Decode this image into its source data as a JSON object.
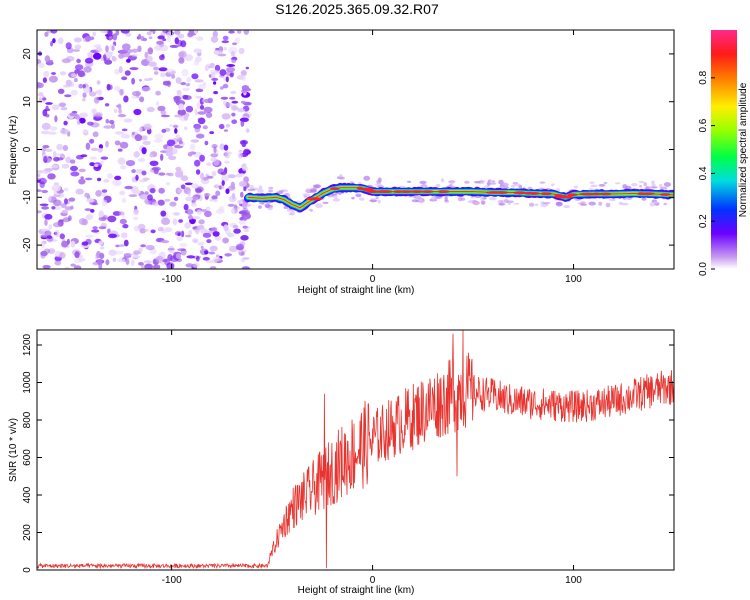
{
  "figure_title": "S126.2025.365.09.32.R07",
  "chart_data": [
    {
      "type": "heatmap",
      "xlabel": "Height of straight line (km)",
      "ylabel": "Frequency (Hz)",
      "xlim": [
        -167,
        150
      ],
      "ylim": [
        -25,
        25
      ],
      "x_ticks": [
        -100,
        0,
        100
      ],
      "y_ticks": [
        -20,
        -10,
        0,
        10,
        20
      ],
      "colorbar": {
        "label": "Normalized spectral amplitude",
        "range": [
          0,
          1
        ],
        "ticks": [
          0.0,
          0.2,
          0.4,
          0.6,
          0.8
        ]
      },
      "noise_region_x": [
        -167,
        -62
      ],
      "signal_ridge": {
        "x": [
          -62,
          -55,
          -48,
          -44,
          -40,
          -36,
          -32,
          -28,
          -24,
          -20,
          -16,
          -12,
          -8,
          -4,
          0,
          10,
          20,
          30,
          40,
          50,
          60,
          70,
          80,
          90,
          96,
          100,
          110,
          120,
          130,
          140,
          150
        ],
        "freq": [
          -10,
          -10.2,
          -10,
          -10.5,
          -11.5,
          -12.2,
          -11,
          -10,
          -9,
          -8.3,
          -8,
          -8,
          -8,
          -8.2,
          -8.8,
          -8.8,
          -8.8,
          -8.8,
          -8.8,
          -8.8,
          -9,
          -9,
          -9.2,
          -9.3,
          -10,
          -9.4,
          -9.3,
          -9.3,
          -9.2,
          -9.3,
          -9.5
        ]
      }
    },
    {
      "type": "line",
      "xlabel": "Height of straight line (km)",
      "ylabel": "SNR (10 * v/v)",
      "xlim": [
        -167,
        150
      ],
      "ylim": [
        0,
        1280
      ],
      "x_ticks": [
        -100,
        0,
        100
      ],
      "y_ticks": [
        0,
        200,
        400,
        600,
        800,
        1000,
        1200
      ],
      "series": [
        {
          "name": "SNR",
          "color": "#e8332e",
          "envelope_x": [
            -167,
            -100,
            -60,
            -52,
            -48,
            -44,
            -40,
            -35,
            -30,
            -25,
            -20,
            -15,
            -10,
            -5,
            0,
            10,
            20,
            30,
            40,
            45,
            50,
            60,
            70,
            80,
            90,
            100,
            110,
            120,
            130,
            140,
            150
          ],
          "envelope_y": [
            20,
            20,
            25,
            40,
            150,
            250,
            330,
            380,
            430,
            480,
            530,
            580,
            620,
            660,
            700,
            760,
            820,
            880,
            930,
            960,
            950,
            930,
            900,
            890,
            880,
            870,
            880,
            900,
            930,
            960,
            980
          ],
          "peaks": [
            {
              "x": -24,
              "y": 940
            },
            {
              "x": -23,
              "y": 10
            },
            {
              "x": 40,
              "y": 1260
            },
            {
              "x": 42,
              "y": 500
            },
            {
              "x": 45,
              "y": 1280
            }
          ]
        }
      ]
    }
  ]
}
